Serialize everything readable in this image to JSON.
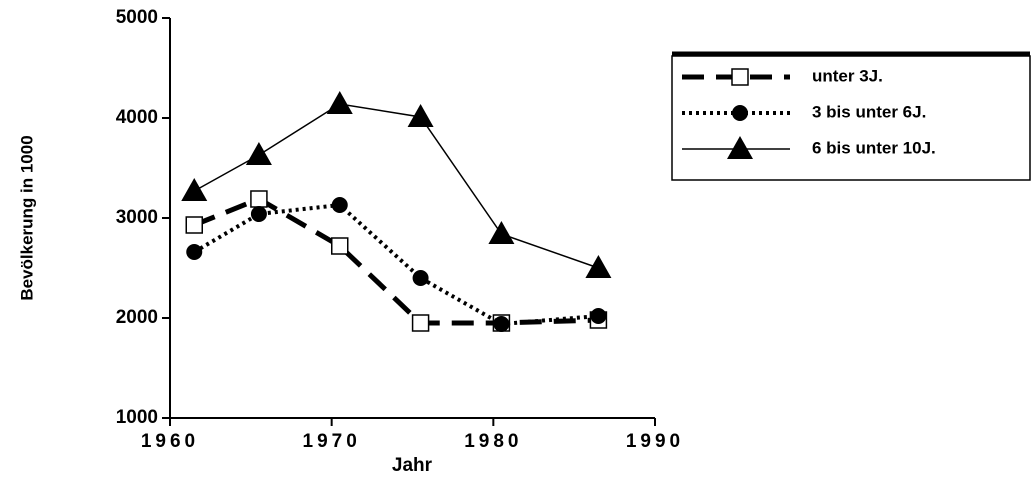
{
  "chart_data": {
    "type": "line",
    "x_label": "Jahr",
    "y_label": "Bevölkerung in 1000",
    "xlim": [
      1960,
      1990
    ],
    "xticks": [
      1960,
      1970,
      1980,
      1990
    ],
    "ylim": [
      1000,
      5000
    ],
    "yticks": [
      1000,
      2000,
      3000,
      4000,
      5000
    ],
    "x": [
      1961.5,
      1965.5,
      1970.5,
      1975.5,
      1980.5,
      1986.5
    ],
    "legend": "upper right",
    "series": [
      {
        "name": "unter  3J.",
        "color": "#000000",
        "dash": "dashed",
        "marker": "square",
        "values": [
          2930,
          3190,
          2720,
          1950,
          1950,
          1980
        ]
      },
      {
        "name": "3 bis unter 6J.",
        "color": "#000000",
        "dash": "dotted",
        "marker": "circle",
        "values": [
          2660,
          3040,
          3130,
          2400,
          1940,
          2020
        ]
      },
      {
        "name": " 6 bis unter 10J.",
        "color": "#000000",
        "dash": "solid",
        "marker": "triangle",
        "values": [
          3270,
          3630,
          4140,
          4010,
          2840,
          2500
        ]
      }
    ]
  }
}
